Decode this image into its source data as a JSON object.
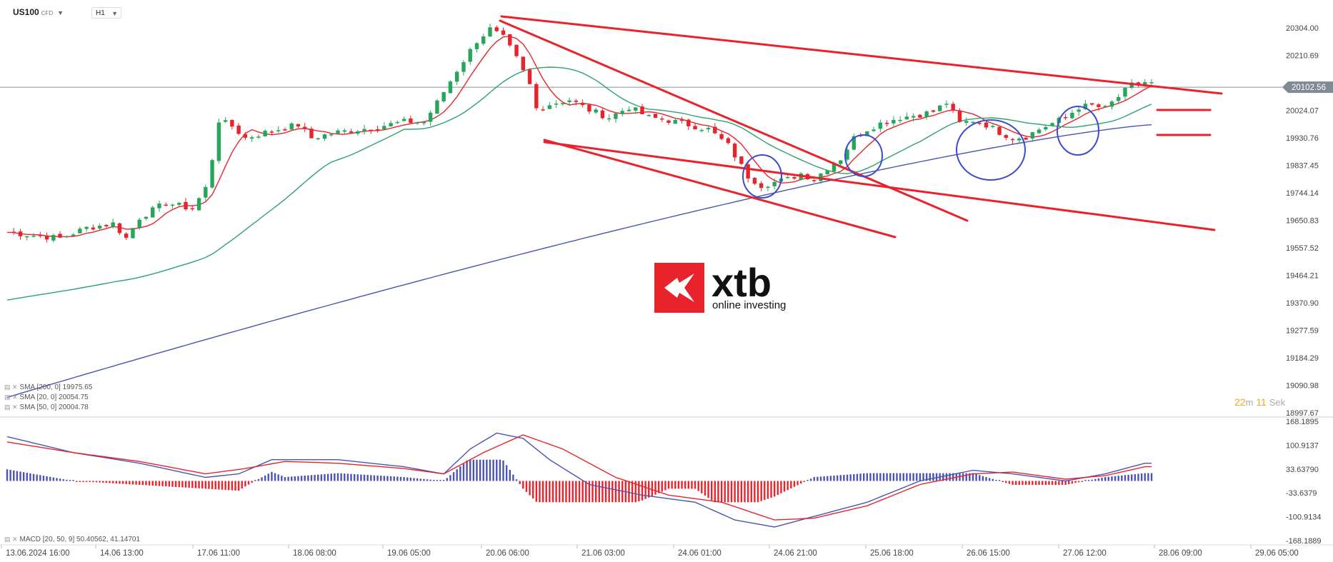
{
  "header": {
    "symbol": "US100",
    "symbol_type": "CFD",
    "timeframe": "H1"
  },
  "indicators": {
    "sma200": "SMA [200, 0] 19975.65",
    "sma20": "SMA [20, 0] 20054.75",
    "sma50": "SMA [50, 0] 20004.78",
    "macd": "MACD [20, 50, 9] 50.40562, 41.14701"
  },
  "countdown": {
    "minutes": "22",
    "minutes_unit": "m",
    "seconds": "11",
    "seconds_unit": "Sek"
  },
  "logo": {
    "text": "xtb",
    "tagline": "online investing"
  },
  "colors": {
    "bull": "#26a65b",
    "bear": "#e8232c",
    "sma20": "#e8232c",
    "sma50": "#2fa36b",
    "sma200": "#4b54b0",
    "trendline": "#e8232c",
    "circle": "#3a4bd0",
    "macd_line": "#4b54b0",
    "signal_line": "#e8232c",
    "price_tag": "#7f8a95"
  },
  "chart_data": {
    "type": "candlestick",
    "symbol": "US100",
    "timeframe": "H1",
    "price_axis": {
      "ticks": [
        "20304.00",
        "20210.69",
        "20024.07",
        "19930.76",
        "19837.45",
        "19744.14",
        "19650.83",
        "19557.52",
        "19464.21",
        "19370.90",
        "19277.59",
        "19184.29",
        "19090.98",
        "18997.67"
      ],
      "range": [
        18997.67,
        20350
      ]
    },
    "current_price": "20102.56",
    "x_axis": {
      "labels": [
        "13.06.2024 16:00",
        "14.06 13:00",
        "17.06 11:00",
        "18.06 08:00",
        "19.06 05:00",
        "20.06 06:00",
        "21.06 03:00",
        "24.06 01:00",
        "24.06 21:00",
        "25.06 18:00",
        "26.06 15:00",
        "27.06 12:00",
        "28.06 09:00",
        "29.06 05:00"
      ]
    },
    "close_path": [
      [
        0,
        19610
      ],
      [
        8,
        19590
      ],
      [
        12,
        19625
      ],
      [
        16,
        19640
      ],
      [
        18,
        19590
      ],
      [
        20,
        19660
      ],
      [
        24,
        19710
      ],
      [
        28,
        19690
      ],
      [
        30,
        19760
      ],
      [
        31,
        19860
      ],
      [
        32,
        19990
      ],
      [
        34,
        19970
      ],
      [
        36,
        19930
      ],
      [
        40,
        19955
      ],
      [
        44,
        19975
      ],
      [
        46,
        19930
      ],
      [
        50,
        19950
      ],
      [
        55,
        19965
      ],
      [
        60,
        19985
      ],
      [
        63,
        19985
      ],
      [
        65,
        20050
      ],
      [
        68,
        20160
      ],
      [
        71,
        20260
      ],
      [
        73,
        20300
      ],
      [
        75,
        20270
      ],
      [
        77,
        20200
      ],
      [
        79,
        20110
      ],
      [
        80,
        20030
      ],
      [
        82,
        20045
      ],
      [
        85,
        20060
      ],
      [
        88,
        20025
      ],
      [
        91,
        20000
      ],
      [
        94,
        20035
      ],
      [
        97,
        20000
      ],
      [
        100,
        19990
      ],
      [
        103,
        19975
      ],
      [
        106,
        19960
      ],
      [
        109,
        19905
      ],
      [
        112,
        19800
      ],
      [
        114,
        19770
      ],
      [
        116,
        19780
      ],
      [
        118,
        19790
      ],
      [
        120,
        19810
      ],
      [
        122,
        19790
      ],
      [
        124,
        19830
      ],
      [
        126,
        19860
      ],
      [
        128,
        19930
      ],
      [
        130,
        19960
      ],
      [
        132,
        19980
      ],
      [
        135,
        20000
      ],
      [
        138,
        20010
      ],
      [
        140,
        20020
      ],
      [
        142,
        20050
      ],
      [
        144,
        19980
      ],
      [
        146,
        19990
      ],
      [
        148,
        19975
      ],
      [
        150,
        19950
      ],
      [
        152,
        19930
      ],
      [
        154,
        19935
      ],
      [
        156,
        19960
      ],
      [
        158,
        19980
      ],
      [
        160,
        20000
      ],
      [
        162,
        20035
      ],
      [
        164,
        20040
      ],
      [
        166,
        20030
      ],
      [
        168,
        20070
      ],
      [
        170,
        20110
      ],
      [
        172,
        20120
      ],
      [
        173,
        20115
      ]
    ],
    "x_slots": 173,
    "drawn_trendlines": 5,
    "marked_circles": 4,
    "macd_panel": {
      "ticks": [
        "168.1895",
        "100.9137",
        "33.63790",
        "-33.6379",
        "-100.9134",
        "-168.1889"
      ],
      "range": [
        -168.1889,
        168.1895
      ],
      "macd_path": [
        [
          0,
          125
        ],
        [
          10,
          80
        ],
        [
          20,
          50
        ],
        [
          30,
          10
        ],
        [
          35,
          20
        ],
        [
          40,
          60
        ],
        [
          50,
          60
        ],
        [
          60,
          40
        ],
        [
          66,
          20
        ],
        [
          70,
          90
        ],
        [
          74,
          135
        ],
        [
          78,
          120
        ],
        [
          82,
          60
        ],
        [
          88,
          -10
        ],
        [
          96,
          -40
        ],
        [
          104,
          -60
        ],
        [
          110,
          -110
        ],
        [
          116,
          -130
        ],
        [
          122,
          -100
        ],
        [
          130,
          -60
        ],
        [
          138,
          0
        ],
        [
          146,
          30
        ],
        [
          152,
          20
        ],
        [
          160,
          0
        ],
        [
          166,
          20
        ],
        [
          172,
          50
        ]
      ],
      "signal_path": [
        [
          0,
          110
        ],
        [
          10,
          80
        ],
        [
          20,
          55
        ],
        [
          30,
          20
        ],
        [
          36,
          35
        ],
        [
          42,
          55
        ],
        [
          50,
          50
        ],
        [
          60,
          35
        ],
        [
          66,
          20
        ],
        [
          72,
          80
        ],
        [
          78,
          130
        ],
        [
          84,
          90
        ],
        [
          92,
          10
        ],
        [
          100,
          -40
        ],
        [
          108,
          -60
        ],
        [
          116,
          -110
        ],
        [
          122,
          -105
        ],
        [
          130,
          -70
        ],
        [
          138,
          -10
        ],
        [
          146,
          20
        ],
        [
          152,
          25
        ],
        [
          160,
          5
        ],
        [
          166,
          15
        ],
        [
          172,
          40
        ]
      ]
    }
  }
}
